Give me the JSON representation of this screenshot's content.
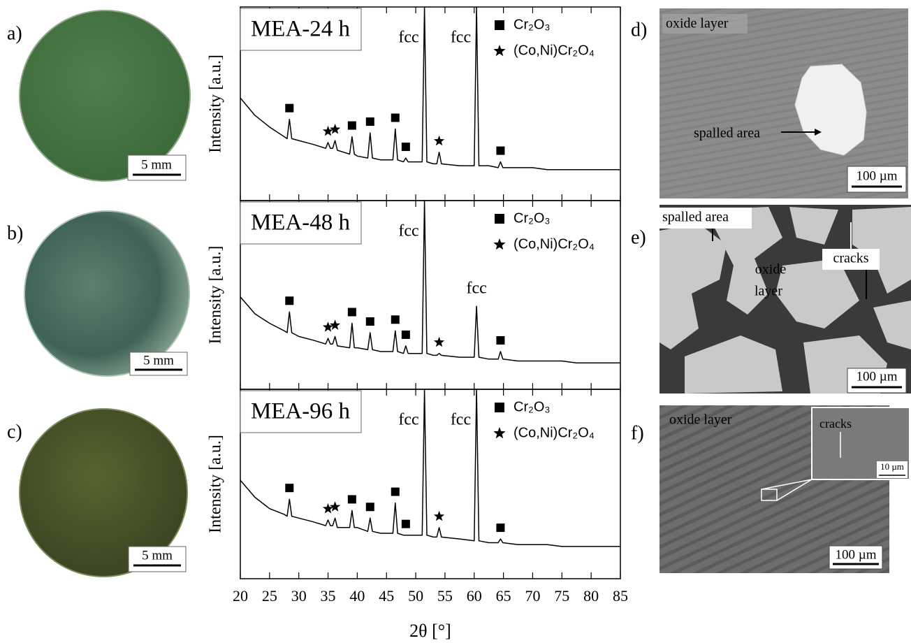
{
  "left_panels": [
    {
      "label": "a)",
      "scale_bar": "5 mm"
    },
    {
      "label": "b)",
      "scale_bar": "5 mm"
    },
    {
      "label": "c)",
      "scale_bar": "5 mm"
    }
  ],
  "right_panels": [
    {
      "label": "d)",
      "oxide_layer": "oxide layer",
      "spalled_area": "spalled area",
      "scale_bar": "100 µm"
    },
    {
      "label": "e)",
      "spalled_area": "spalled area",
      "oxide_layer": [
        "oxide",
        "layer"
      ],
      "cracks": "cracks",
      "scale_bar": "100 µm"
    },
    {
      "label": "f)",
      "oxide_layer": "oxide layer",
      "cracks": "cracks",
      "inset_scale_bar": "10 µm",
      "scale_bar": "100 µm"
    }
  ],
  "chart_data": [
    {
      "type": "line",
      "title": "MEA-24 h",
      "y_label": "Intensity [a.u.]",
      "color": "#000000",
      "xlim": [
        20,
        85
      ],
      "ylim": [
        0,
        100
      ],
      "x": [
        20,
        22.5,
        25,
        27.5,
        28,
        28.4,
        28.8,
        30,
        32.5,
        34.6,
        35,
        35.4,
        35.8,
        36.2,
        36.6,
        38.7,
        39.1,
        39.5,
        40,
        41.8,
        42.2,
        42.6,
        44,
        46.1,
        46.5,
        46.9,
        47.9,
        48.3,
        48.7,
        50,
        51.1,
        51.5,
        51.9,
        53,
        53.6,
        54,
        54.4,
        57.5,
        60,
        60.4,
        60.8,
        62.5,
        64.1,
        64.5,
        64.9,
        67.5,
        70,
        72.5,
        75,
        77.5,
        80,
        82.5,
        85
      ],
      "values": [
        53,
        44,
        38,
        33,
        32,
        42,
        32,
        31,
        29,
        27,
        30,
        27,
        27,
        31,
        26,
        24,
        33,
        24,
        23,
        22,
        35,
        22,
        21,
        21,
        37,
        21,
        20,
        22,
        20,
        20,
        20,
        100,
        20,
        19,
        19,
        25,
        19,
        18,
        18,
        100,
        18,
        18,
        17,
        20,
        17,
        17,
        17,
        16,
        16,
        16,
        16,
        16,
        16
      ],
      "legend": [
        {
          "name": "Cr₂O₃",
          "symbol": "square",
          "peaks": [
            28.4,
            39.1,
            42.2,
            46.5,
            48.3,
            64.5
          ]
        },
        {
          "name": "(Co,Ni)Cr₂O₄",
          "symbol": "star",
          "peaks": [
            35.0,
            36.2,
            54.0
          ]
        }
      ],
      "annotations": [
        {
          "text": "fcc",
          "x": 51.5
        },
        {
          "text": "fcc",
          "x": 60.4
        }
      ]
    },
    {
      "type": "line",
      "title": "MEA-48 h",
      "y_label": "Intensity [a.u.]",
      "color": "#000000",
      "xlim": [
        20,
        85
      ],
      "ylim": [
        0,
        100
      ],
      "x": [
        20,
        22.5,
        25,
        27.5,
        28,
        28.4,
        28.8,
        30,
        32.5,
        34.6,
        35,
        35.4,
        35.8,
        36.2,
        36.6,
        38.7,
        39.1,
        39.5,
        40,
        41.8,
        42.2,
        42.6,
        44,
        46.1,
        46.5,
        46.9,
        47.9,
        48.3,
        48.7,
        50,
        51.1,
        51.5,
        51.9,
        53,
        53.6,
        54,
        54.4,
        57.5,
        60,
        60.4,
        60.8,
        62.5,
        64.1,
        64.5,
        64.9,
        67.5,
        70,
        72.5,
        75,
        77.5,
        80,
        82.5,
        85
      ],
      "values": [
        49,
        40,
        35,
        31,
        30,
        41,
        30,
        28,
        26,
        24,
        27,
        24,
        24,
        28,
        23,
        22,
        35,
        22,
        22,
        21,
        30,
        21,
        20,
        20,
        31,
        20,
        19,
        23,
        19,
        19,
        19,
        100,
        19,
        18,
        18,
        19,
        18,
        17,
        17,
        44,
        17,
        16,
        16,
        20,
        16,
        15,
        15,
        15,
        15,
        14,
        14,
        14,
        14
      ],
      "legend": [
        {
          "name": "Cr₂O₃",
          "symbol": "square",
          "peaks": [
            28.4,
            39.1,
            42.2,
            46.5,
            48.3,
            64.5
          ]
        },
        {
          "name": "(Co,Ni)Cr₂O₄",
          "symbol": "star",
          "peaks": [
            35.0,
            36.2,
            54.0
          ]
        }
      ],
      "annotations": [
        {
          "text": "fcc",
          "x": 51.5
        },
        {
          "text": "fcc",
          "x": 60.4
        }
      ]
    },
    {
      "type": "line",
      "title": "MEA-96 h",
      "y_label": "Intensity [a.u.]",
      "x_label": "2θ [°]",
      "color": "#000000",
      "xlim": [
        20,
        85
      ],
      "ylim": [
        0,
        100
      ],
      "xticks": [
        20,
        25,
        30,
        35,
        40,
        45,
        50,
        55,
        60,
        65,
        70,
        75,
        80,
        85
      ],
      "x": [
        20,
        22.5,
        25,
        27.5,
        28,
        28.4,
        28.8,
        30,
        32.5,
        34.6,
        35,
        35.4,
        35.8,
        36.2,
        36.6,
        38.7,
        39.1,
        39.5,
        40,
        41.8,
        42.2,
        42.6,
        44,
        46.1,
        46.5,
        46.9,
        47.9,
        48.3,
        48.7,
        50,
        51.1,
        51.5,
        51.9,
        53,
        53.6,
        54,
        54.4,
        57.5,
        60,
        60.4,
        60.8,
        62.5,
        64.1,
        64.5,
        64.9,
        67.5,
        70,
        72.5,
        75,
        77.5,
        80,
        82.5,
        85
      ],
      "values": [
        52,
        43,
        37,
        34,
        33,
        42,
        33,
        32,
        30,
        28,
        31,
        28,
        28,
        32,
        27,
        27,
        36,
        27,
        27,
        25,
        32,
        25,
        24,
        24,
        40,
        24,
        23,
        23,
        23,
        23,
        23,
        100,
        23,
        22,
        22,
        27,
        22,
        21,
        20,
        100,
        20,
        19,
        19,
        21,
        19,
        18,
        18,
        18,
        17,
        17,
        17,
        17,
        17
      ],
      "legend": [
        {
          "name": "Cr₂O₃",
          "symbol": "square",
          "peaks": [
            28.4,
            39.1,
            42.2,
            46.5,
            48.3,
            64.5
          ]
        },
        {
          "name": "(Co,Ni)Cr₂O₄",
          "symbol": "star",
          "peaks": [
            35.0,
            36.2,
            54.0
          ]
        }
      ],
      "annotations": [
        {
          "text": "fcc",
          "x": 51.5
        },
        {
          "text": "fcc",
          "x": 60.4
        }
      ]
    }
  ]
}
